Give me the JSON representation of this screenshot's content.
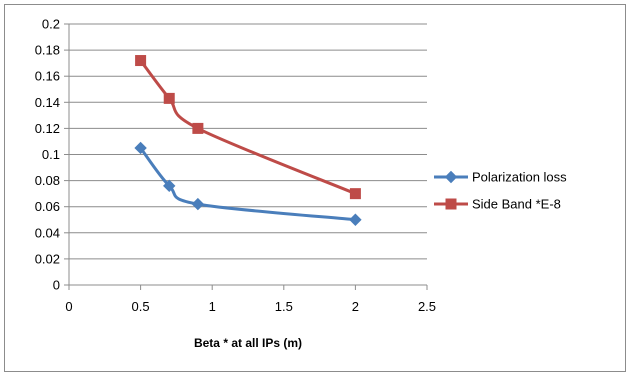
{
  "chart_data": {
    "type": "line",
    "title": "",
    "xlabel": "Beta * at all IPs (m)",
    "ylabel": "",
    "xlim": [
      0,
      2.5
    ],
    "ylim": [
      0,
      0.2
    ],
    "x_ticks": [
      "0",
      "0.5",
      "1",
      "1.5",
      "2",
      "2.5"
    ],
    "y_ticks": [
      "0",
      "0.02",
      "0.04",
      "0.06",
      "0.08",
      "0.1",
      "0.12",
      "0.14",
      "0.16",
      "0.18",
      "0.2"
    ],
    "grid": "horizontal",
    "legend_position": "right",
    "series": [
      {
        "name": "Polarization loss",
        "color": "#4a7ebb",
        "marker": "diamond",
        "smooth": true,
        "points": [
          {
            "x": 0.5,
            "y": 0.105
          },
          {
            "x": 0.7,
            "y": 0.076
          },
          {
            "x": 0.9,
            "y": 0.062
          },
          {
            "x": 2.0,
            "y": 0.05
          }
        ]
      },
      {
        "name": "Side Band *E-8",
        "color": "#be4b48",
        "marker": "square",
        "smooth": true,
        "points": [
          {
            "x": 0.5,
            "y": 0.172
          },
          {
            "x": 0.7,
            "y": 0.143
          },
          {
            "x": 0.9,
            "y": 0.12
          },
          {
            "x": 2.0,
            "y": 0.07
          }
        ]
      }
    ]
  }
}
